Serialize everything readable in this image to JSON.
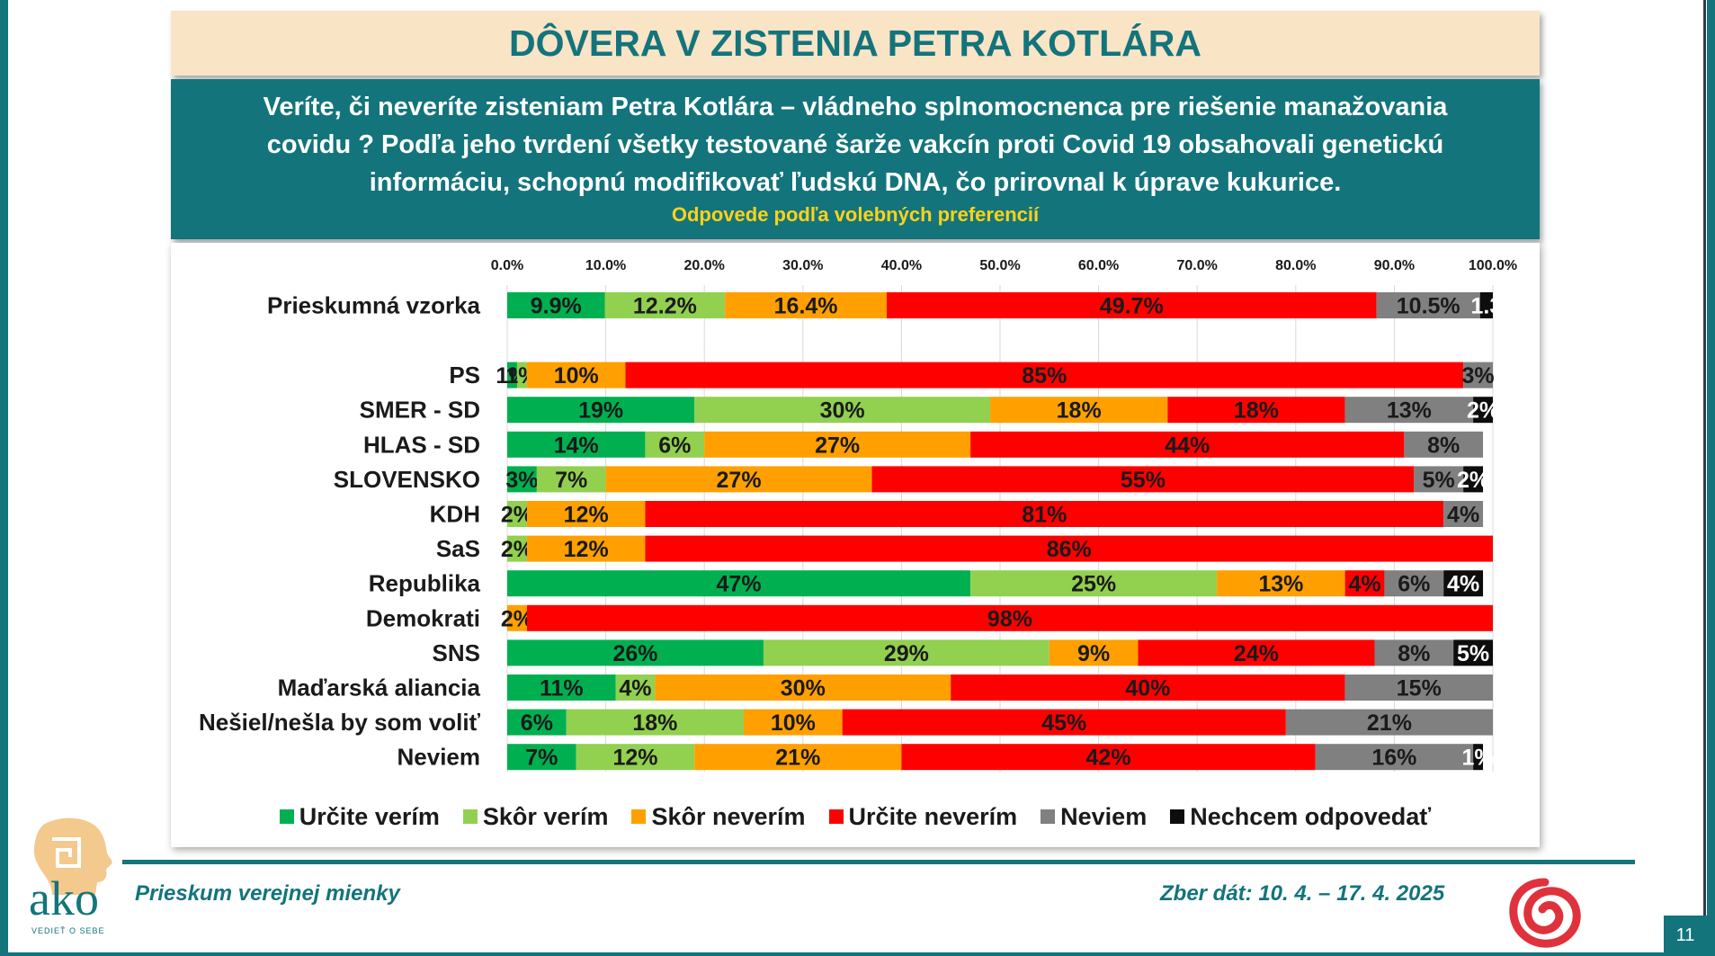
{
  "title": "DÔVERA V ZISTENIA PETRA KOTLÁRA",
  "question": "Veríte, či neveríte zisteniam Petra Kotlára – vládneho splnomocnenca pre riešenie manažovania covidu ? Podľa jeho tvrdení všetky testované šarže vakcín proti Covid 19 obsahovali genetickú informáciu, schopnú modifikovať ľudskú DNA, čo prirovnal k úprave kukurice.",
  "question_sub": "Odpovede podľa volebných preferencií",
  "footer": {
    "left": "Prieskum verejnej mienky",
    "right": "Zber dát: 10. 4. – 17. 4. 2025",
    "page_number": "11",
    "logo_word": "ako",
    "logo_tagline": "VEDIEŤ O SEBE"
  },
  "colors": {
    "teal": "#13747c",
    "title_bg": "#f9e4c6",
    "subtitle_yellow": "#ffd21a"
  },
  "chart_data": {
    "type": "bar",
    "orientation": "horizontal",
    "stacked": true,
    "x_ticks": [
      "0.0%",
      "10.0%",
      "20.0%",
      "30.0%",
      "40.0%",
      "50.0%",
      "60.0%",
      "70.0%",
      "80.0%",
      "90.0%",
      "100.0%"
    ],
    "xlim": [
      0,
      100
    ],
    "grid": true,
    "legend_position": "bottom",
    "series": [
      {
        "name": "Určite verím",
        "color": "#00b050"
      },
      {
        "name": "Skôr verím",
        "color": "#92d050"
      },
      {
        "name": "Skôr neverím",
        "color": "#ffa000"
      },
      {
        "name": "Určite neverím",
        "color": "#ff0000"
      },
      {
        "name": "Neviem",
        "color": "#808080"
      },
      {
        "name": "Nechcem odpovedať",
        "color": "#0d0d0d"
      }
    ],
    "groups": [
      {
        "category": "Prieskumná vzorka",
        "values": [
          9.9,
          12.2,
          16.4,
          49.7,
          10.5,
          1.3
        ],
        "labels": [
          "9.9%",
          "12.2%",
          "16.4%",
          "49.7%",
          "10.5%",
          "1.3"
        ],
        "gap_after": true
      },
      {
        "category": "PS",
        "values": [
          1,
          1,
          10,
          85,
          3,
          0
        ],
        "labels": [
          "1%",
          "1%",
          "10%",
          "85%",
          "3%",
          ""
        ]
      },
      {
        "category": "SMER - SD",
        "values": [
          19,
          30,
          18,
          18,
          13,
          2
        ],
        "labels": [
          "19%",
          "30%",
          "18%",
          "18%",
          "13%",
          "2%"
        ]
      },
      {
        "category": "HLAS - SD",
        "values": [
          14,
          6,
          27,
          44,
          8,
          0
        ],
        "labels": [
          "14%",
          "6%",
          "27%",
          "44%",
          "8%",
          ""
        ]
      },
      {
        "category": "SLOVENSKO",
        "values": [
          3,
          7,
          27,
          55,
          5,
          2
        ],
        "labels": [
          "3%",
          "7%",
          "27%",
          "55%",
          "5%",
          "2%"
        ]
      },
      {
        "category": "KDH",
        "values": [
          0,
          2,
          12,
          81,
          4,
          0
        ],
        "labels": [
          "",
          "2%",
          "12%",
          "81%",
          "4%",
          ""
        ]
      },
      {
        "category": "SaS",
        "values": [
          0,
          2,
          12,
          86,
          0,
          0
        ],
        "labels": [
          "",
          "2%",
          "12%",
          "86%",
          "",
          ""
        ]
      },
      {
        "category": "Republika",
        "values": [
          47,
          25,
          13,
          4,
          6,
          4
        ],
        "labels": [
          "47%",
          "25%",
          "13%",
          "4%",
          "6%",
          "4%"
        ]
      },
      {
        "category": "Demokrati",
        "values": [
          0,
          0,
          2,
          98,
          0,
          0
        ],
        "labels": [
          "",
          "",
          "2%",
          "98%",
          "",
          ""
        ]
      },
      {
        "category": "SNS",
        "values": [
          26,
          29,
          9,
          24,
          8,
          5
        ],
        "labels": [
          "26%",
          "29%",
          "9%",
          "24%",
          "8%",
          "5%"
        ]
      },
      {
        "category": "Maďarská aliancia",
        "values": [
          11,
          4,
          30,
          40,
          15,
          0
        ],
        "labels": [
          "11%",
          "4%",
          "30%",
          "40%",
          "15%",
          ""
        ]
      },
      {
        "category": "Nešiel/nešla by som voliť",
        "values": [
          6,
          18,
          10,
          45,
          21,
          0
        ],
        "labels": [
          "6%",
          "18%",
          "10%",
          "45%",
          "21%",
          ""
        ]
      },
      {
        "category": "Neviem",
        "values": [
          7,
          12,
          21,
          42,
          16,
          1
        ],
        "labels": [
          "7%",
          "12%",
          "21%",
          "42%",
          "16%",
          "1%"
        ]
      }
    ]
  }
}
